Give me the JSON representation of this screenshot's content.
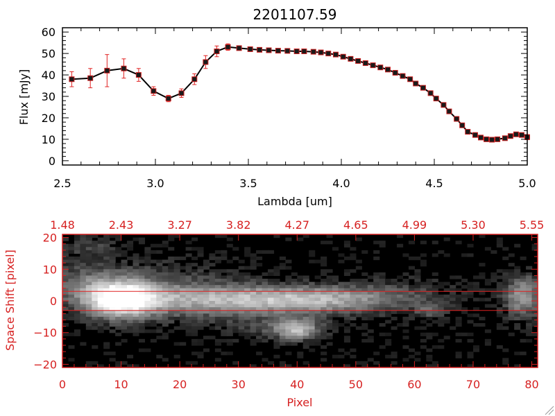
{
  "colors": {
    "axis_top": "#000000",
    "axis_bottom": "#d62020",
    "error_bar": "#e02020",
    "marker": "#1a1a1a",
    "marker_edge": "#cc2020",
    "line": "#000000",
    "aperture_line": "#e02020"
  },
  "chart_data": [
    {
      "type": "line",
      "title": "2201107.59",
      "xlabel": "Lambda [um]",
      "ylabel": "Flux [mJy]",
      "xlim": [
        2.5,
        5.0
      ],
      "ylim": [
        -2,
        62
      ],
      "xticks": [
        2.5,
        3.0,
        3.5,
        4.0,
        4.5,
        5.0
      ],
      "xtick_labels": [
        "2.5",
        "3.0",
        "3.5",
        "4.0",
        "4.5",
        "5.0"
      ],
      "yticks": [
        0,
        10,
        20,
        30,
        40,
        50,
        60
      ],
      "ytick_labels": [
        "0",
        "10",
        "20",
        "30",
        "40",
        "50",
        "60"
      ],
      "series": [
        {
          "x": [
            2.55,
            2.65,
            2.74,
            2.83,
            2.91,
            2.99,
            3.07,
            3.14,
            3.21,
            3.27,
            3.33,
            3.39,
            3.45,
            3.51,
            3.56,
            3.61,
            3.66,
            3.71,
            3.76,
            3.8,
            3.85,
            3.89,
            3.93,
            3.97,
            4.01,
            4.05,
            4.09,
            4.13,
            4.17,
            4.21,
            4.25,
            4.29,
            4.33,
            4.37,
            4.4,
            4.44,
            4.48,
            4.51,
            4.55,
            4.58,
            4.62,
            4.65,
            4.68,
            4.72,
            4.75,
            4.78,
            4.81,
            4.84,
            4.88,
            4.91,
            4.94,
            4.97,
            5.0
          ],
          "y": [
            38,
            38.5,
            42,
            43,
            40,
            32.5,
            29,
            31.5,
            38,
            46,
            51,
            53,
            52.5,
            52,
            51.7,
            51.5,
            51.3,
            51.2,
            51,
            51,
            50.8,
            50.5,
            50,
            49.5,
            48.5,
            47.5,
            46.5,
            45.5,
            44.5,
            43.5,
            42.5,
            41,
            39.5,
            38,
            36,
            34,
            31.5,
            29,
            26,
            23,
            19.5,
            16.5,
            13.5,
            12,
            10.8,
            10,
            9.8,
            10,
            10.5,
            11.5,
            12.3,
            12,
            11
          ],
          "yerr": [
            3.5,
            4.5,
            7.5,
            4.5,
            3.0,
            2.0,
            1.5,
            2.0,
            2.5,
            3.0,
            2.5,
            1.5,
            0.8,
            0.6,
            0.5,
            0.5,
            0.5,
            0.5,
            0.5,
            0.5,
            0.5,
            0.5,
            0.5,
            0.5,
            0.5,
            0.5,
            0.5,
            0.5,
            0.5,
            0.5,
            0.5,
            0.5,
            0.5,
            0.5,
            0.5,
            0.5,
            0.5,
            0.5,
            0.5,
            0.5,
            0.5,
            0.5,
            0.5,
            0.5,
            0.5,
            0.5,
            0.5,
            0.5,
            0.5,
            0.5,
            0.5,
            0.8,
            1.2
          ]
        }
      ]
    },
    {
      "type": "heatmap",
      "xlabel": "Pixel",
      "ylabel": "Space Shift [pixel]",
      "xlim": [
        0,
        81
      ],
      "ylim": [
        -21,
        21
      ],
      "xticks": [
        0,
        10,
        20,
        30,
        40,
        50,
        60,
        70,
        80
      ],
      "xtick_labels": [
        "0",
        "10",
        "20",
        "30",
        "40",
        "50",
        "60",
        "70",
        "80"
      ],
      "yticks": [
        -20,
        -10,
        0,
        10,
        20
      ],
      "ytick_labels": [
        "−20",
        "−10",
        "0",
        "10",
        "20"
      ],
      "top_axis_ticks": [
        0,
        10,
        20,
        30,
        40,
        50,
        60,
        70,
        80
      ],
      "top_axis_labels": [
        "1.48",
        "2.43",
        "3.27",
        "3.82",
        "4.27",
        "4.65",
        "4.99",
        "5.30",
        "5.55"
      ],
      "aperture_lines": [
        3,
        -3
      ],
      "sources": [
        {
          "x": 10,
          "y": 0.5,
          "sx": 4.0,
          "sy": 4.0,
          "amp": 1.0
        },
        {
          "x": 26,
          "y": 0.5,
          "sx": 14,
          "sy": 3.2,
          "amp": 0.55
        },
        {
          "x": 45,
          "y": 0.5,
          "sx": 10,
          "sy": 2.8,
          "amp": 0.45
        },
        {
          "x": 15,
          "y": 6,
          "sx": 10,
          "sy": 5,
          "amp": 0.18
        },
        {
          "x": 3,
          "y": 6,
          "sx": 4,
          "sy": 4,
          "amp": 0.22
        },
        {
          "x": 5,
          "y": 17,
          "sx": 3,
          "sy": 2.5,
          "amp": 0.18
        },
        {
          "x": 40,
          "y": -9,
          "sx": 2.5,
          "sy": 2.2,
          "amp": 0.6
        },
        {
          "x": 36,
          "y": -9,
          "sx": 5,
          "sy": 2.5,
          "amp": 0.15
        },
        {
          "x": 63,
          "y": -3,
          "sx": 2,
          "sy": 1.6,
          "amp": 0.3
        },
        {
          "x": 78.5,
          "y": 1.5,
          "sx": 2.2,
          "sy": 4.5,
          "amp": 0.55
        },
        {
          "x": 30,
          "y": -5,
          "sx": 15,
          "sy": 3,
          "amp": 0.08
        },
        {
          "x": 58,
          "y": 4,
          "sx": 6,
          "sy": 3,
          "amp": 0.1
        }
      ]
    }
  ]
}
